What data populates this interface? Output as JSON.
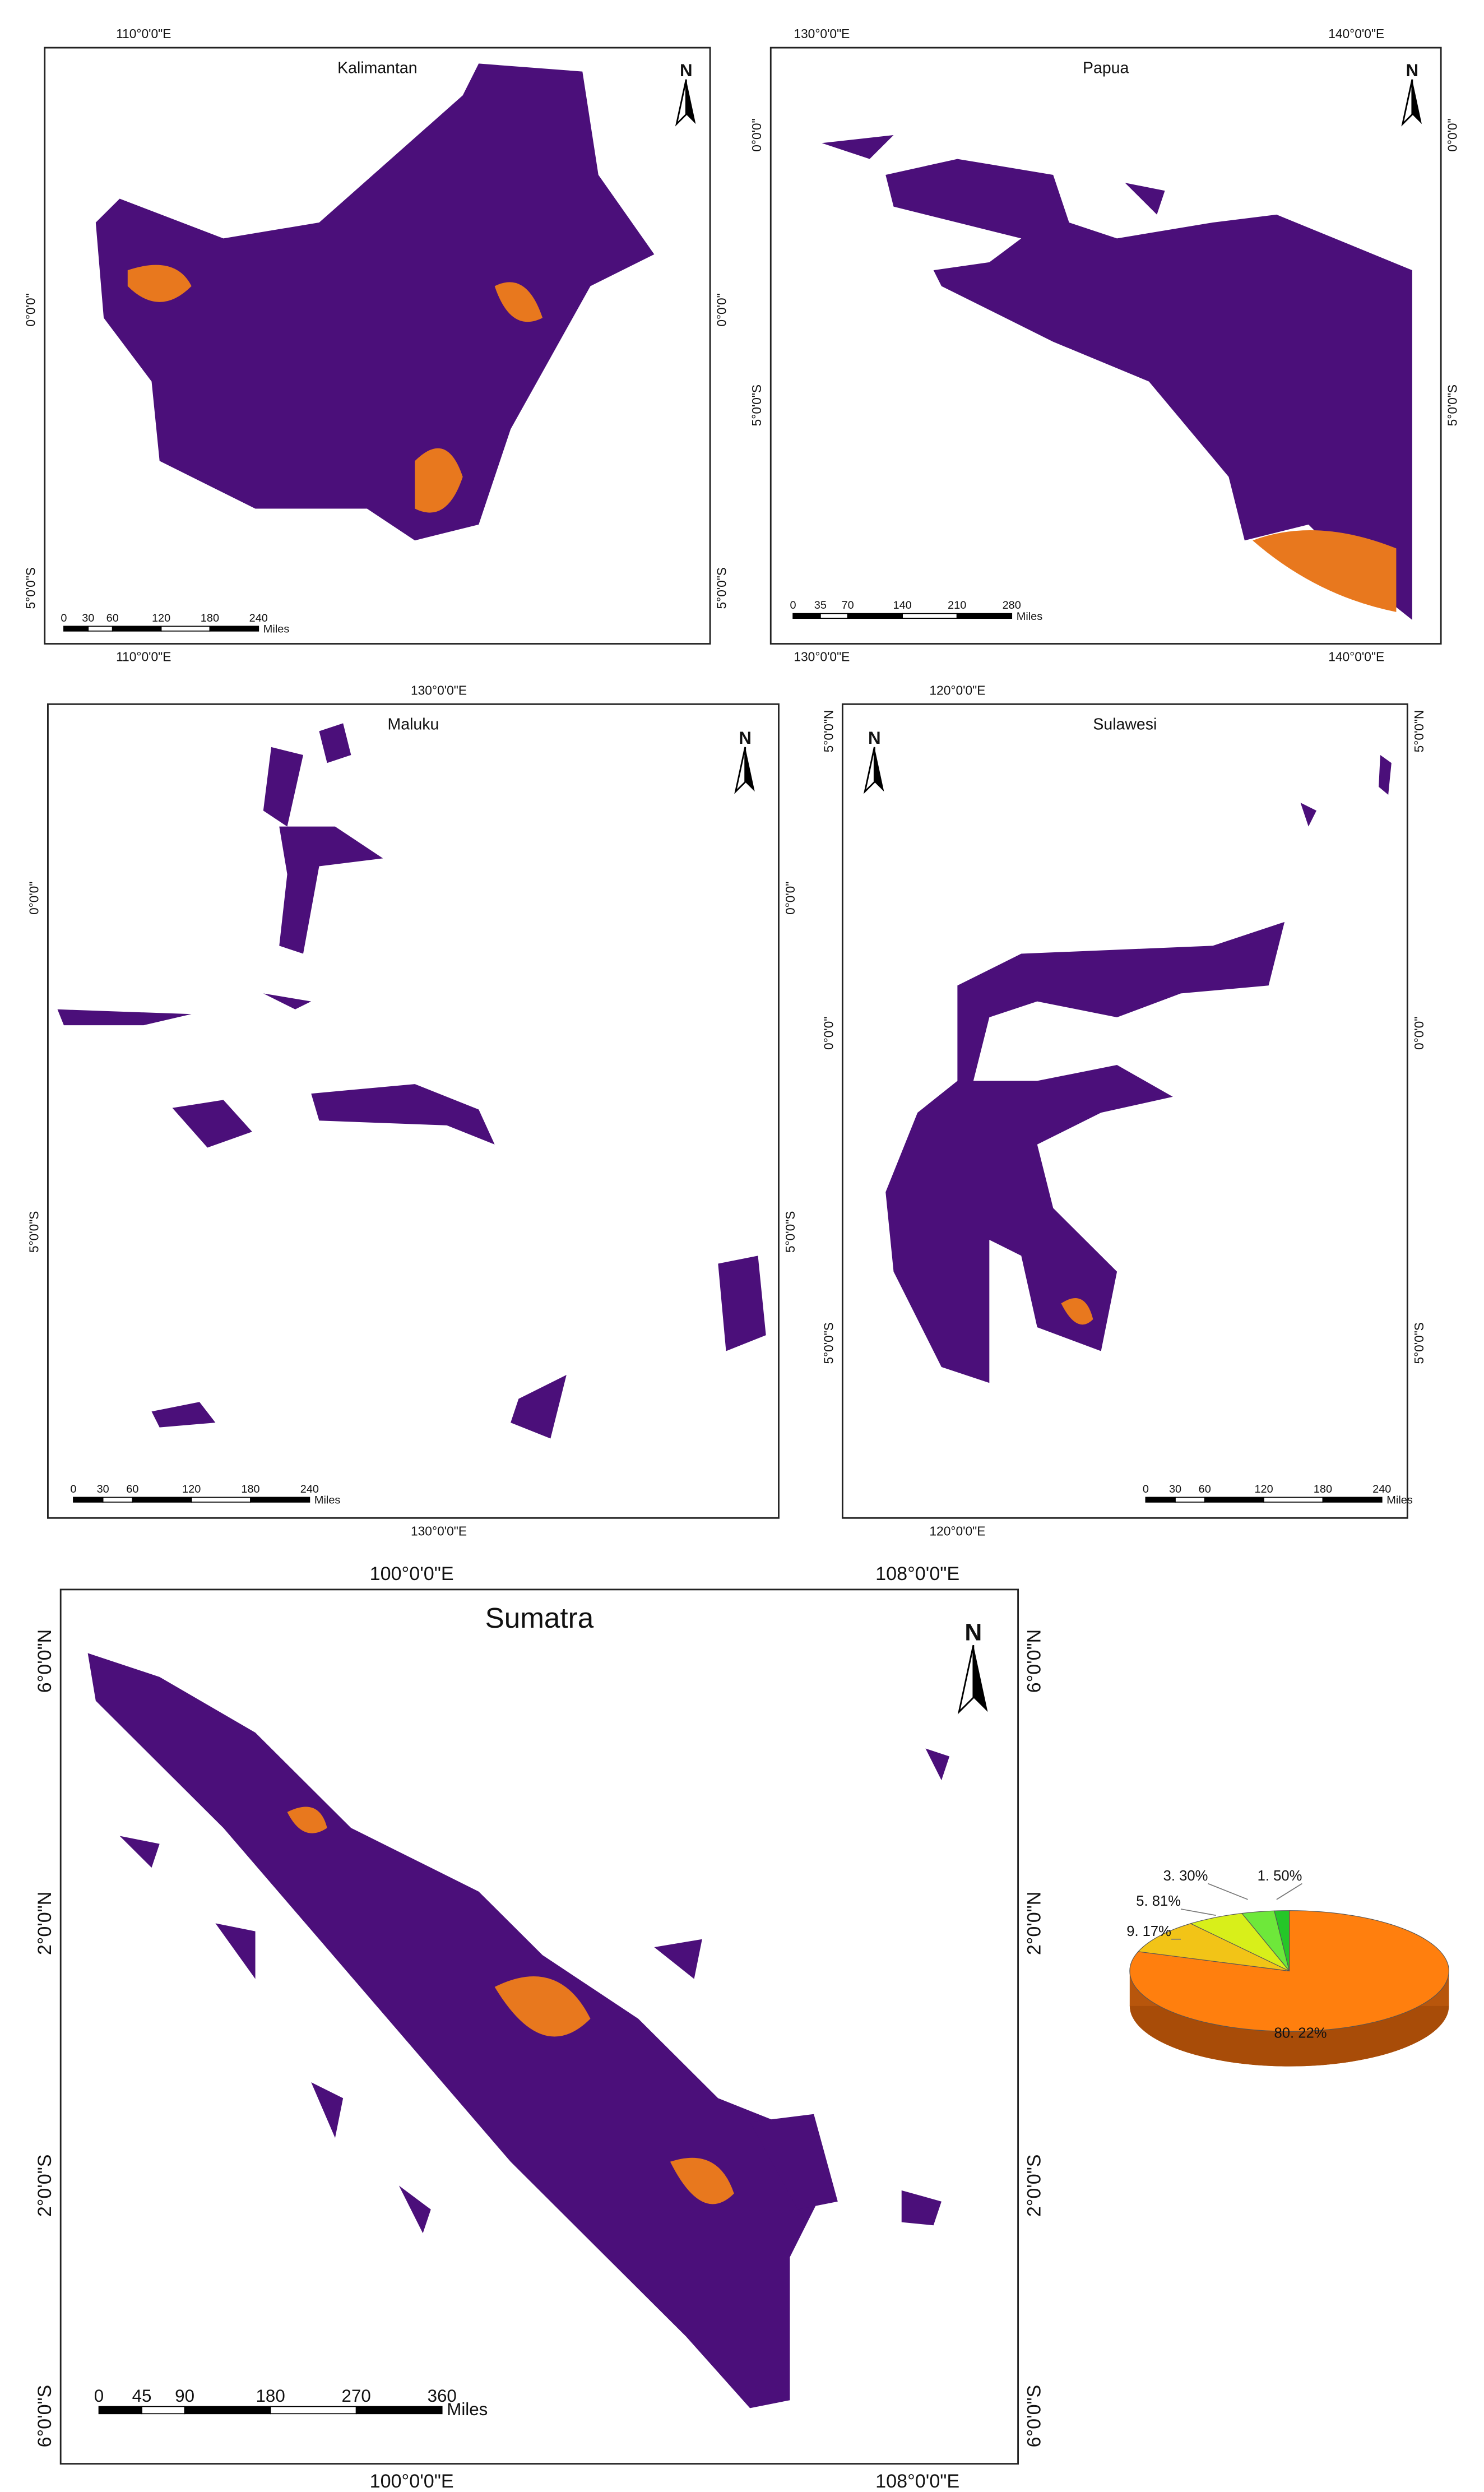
{
  "maps": [
    {
      "title": "Kalimantan",
      "top_labels": [
        "110°0'0\"E"
      ],
      "bottom_labels": [
        "110°0'0\"E"
      ],
      "left_labels": [
        "0°0'0\"",
        "5°0'0\"S"
      ],
      "right_labels": [
        "0°0'0\"",
        "5°0'0\"S"
      ],
      "north": "N",
      "scale_labels": [
        0,
        30,
        60,
        120,
        180,
        240
      ],
      "scale_unit": "Miles"
    },
    {
      "title": "Papua",
      "top_labels": [
        "130°0'0\"E",
        "140°0'0\"E"
      ],
      "bottom_labels": [
        "130°0'0\"E",
        "140°0'0\"E"
      ],
      "left_labels": [
        "0°0'0\"",
        "5°0'0\"S"
      ],
      "right_labels": [
        "0°0'0\"",
        "5°0'0\"S"
      ],
      "north": "N",
      "scale_labels": [
        0,
        35,
        70,
        140,
        210,
        280
      ],
      "scale_unit": "Miles"
    },
    {
      "title": "Maluku",
      "top_labels": [
        "130°0'0\"E"
      ],
      "bottom_labels": [
        "130°0'0\"E"
      ],
      "left_labels": [
        "0°0'0\"",
        "5°0'0\"S"
      ],
      "right_labels": [
        "0°0'0\"",
        "5°0'0\"S"
      ],
      "north": "N",
      "scale_labels": [
        0,
        30,
        60,
        120,
        180,
        240
      ],
      "scale_unit": "Miles"
    },
    {
      "title": "Sulawesi",
      "top_labels": [
        "120°0'0\"E"
      ],
      "bottom_labels": [
        "120°0'0\"E"
      ],
      "left_labels": [
        "5°0'0\"N",
        "0°0'0\"",
        "5°0'0\"S"
      ],
      "right_labels": [
        "5°0'0\"N",
        "0°0'0\"",
        "5°0'0\"S"
      ],
      "north": "N",
      "scale_labels": [
        0,
        30,
        60,
        120,
        180,
        240
      ],
      "scale_unit": "Miles"
    },
    {
      "title": "Sumatra",
      "top_labels": [
        "100°0'0\"E",
        "108°0'0\"E"
      ],
      "bottom_labels": [
        "100°0'0\"E",
        "108°0'0\"E"
      ],
      "left_labels": [
        "6°0'0\"N",
        "2°0'0\"N",
        "2°0'0\"S",
        "6°0'0\"S"
      ],
      "right_labels": [
        "6°0'0\"N",
        "2°0'0\"N",
        "2°0'0\"S",
        "6°0'0\"S"
      ],
      "north": "N",
      "scale_labels": [
        0,
        45,
        90,
        180,
        270,
        360
      ],
      "scale_unit": "Miles"
    }
  ],
  "chart_data": {
    "type": "pie",
    "values": [
      80.22,
      9.17,
      5.81,
      3.3,
      1.5
    ],
    "value_labels": [
      "80. 22%",
      "9. 17%",
      "5. 81%",
      "3. 30%",
      "1. 50%"
    ],
    "colors": [
      "#ff7f0e",
      "#f2c417",
      "#d8ef1a",
      "#6ee83a",
      "#25c628"
    ]
  }
}
